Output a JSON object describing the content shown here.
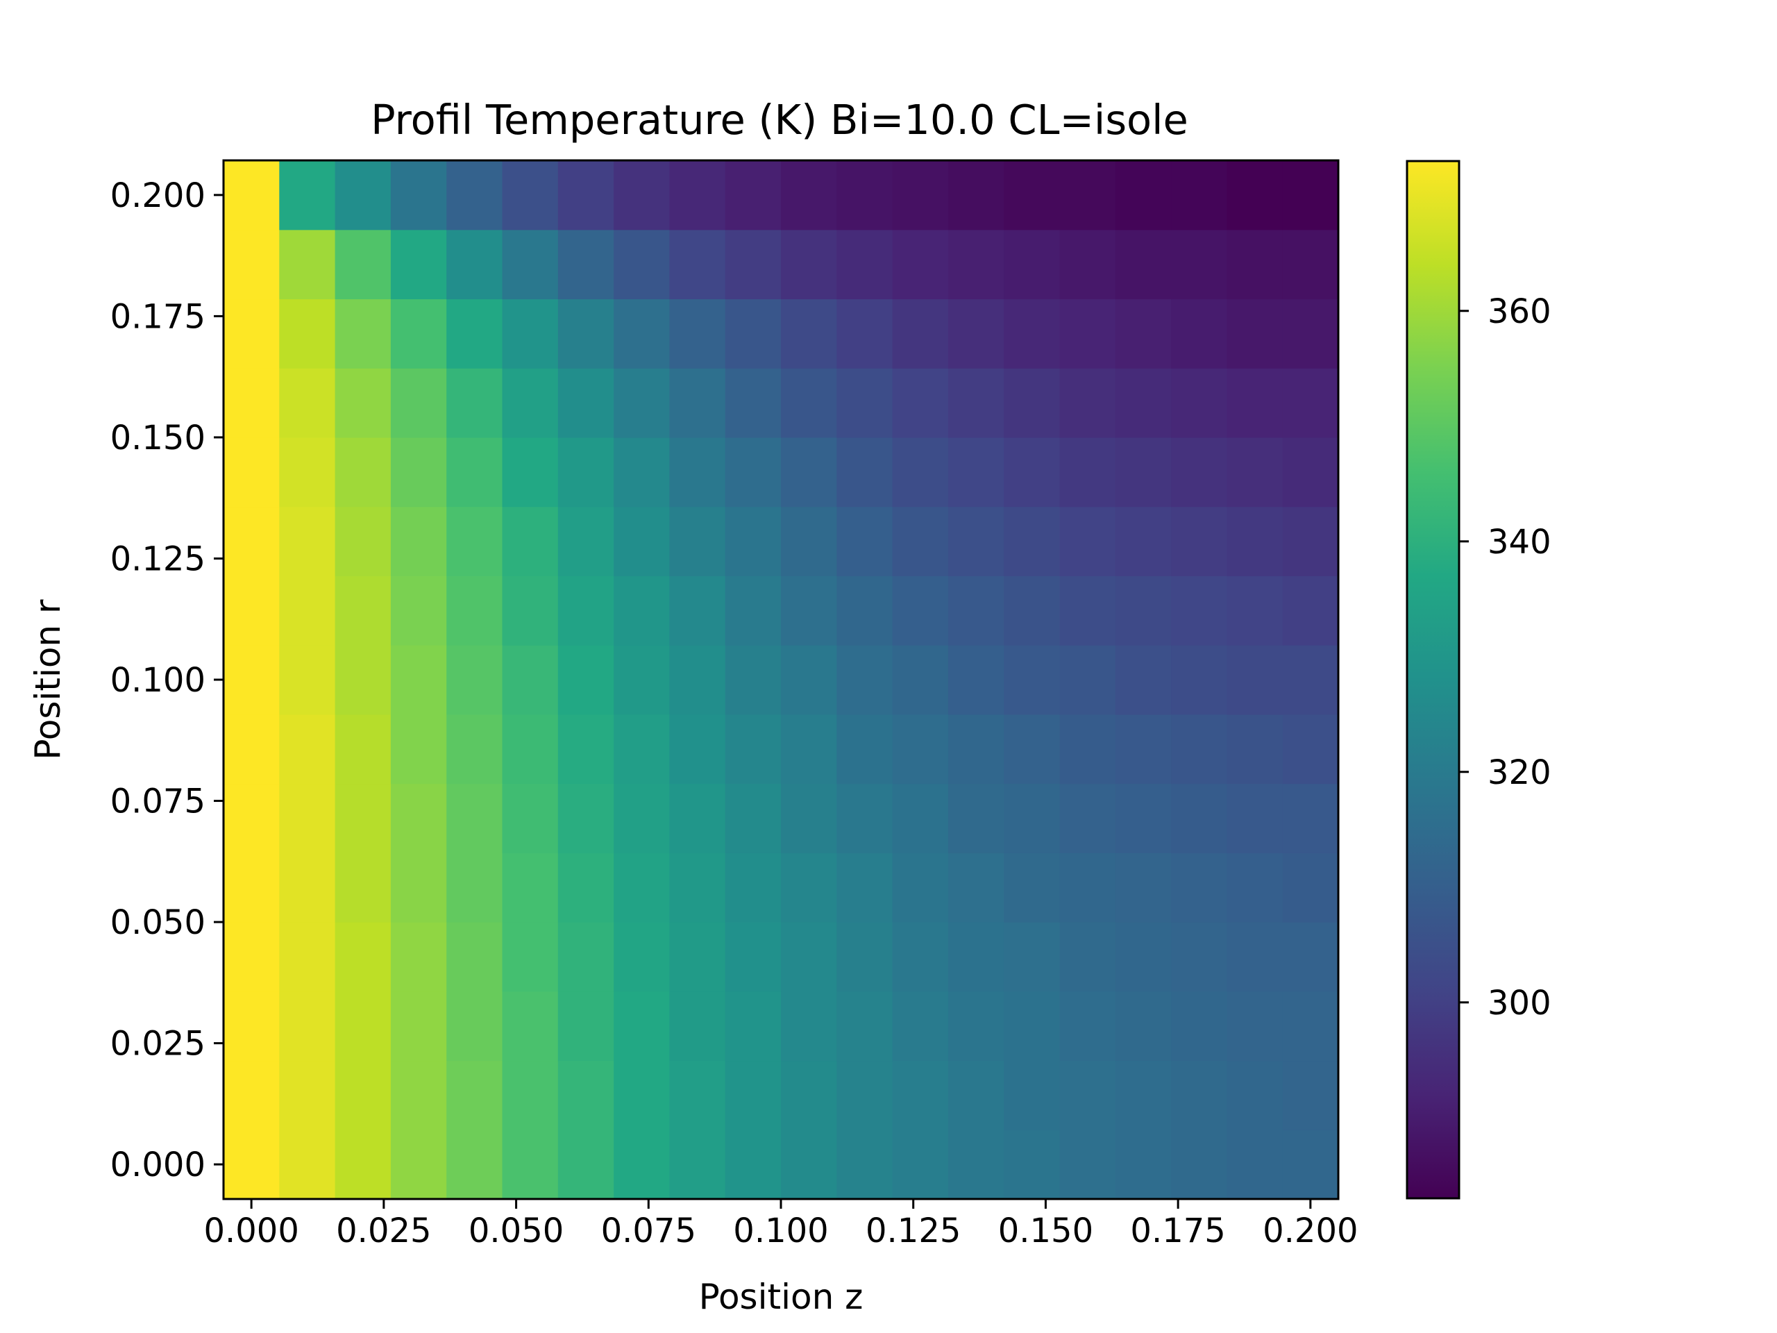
{
  "chart_data": {
    "type": "heatmap",
    "title": "Profil Temperature (K) Bi=10.0 CL=isole",
    "xlabel": "Position z",
    "ylabel": "Position r",
    "x_range": [
      0.0,
      0.2
    ],
    "y_range": [
      0.0,
      0.2
    ],
    "x_ticks": [
      0.0,
      0.025,
      0.05,
      0.075,
      0.1,
      0.125,
      0.15,
      0.175,
      0.2
    ],
    "y_ticks": [
      0.0,
      0.025,
      0.05,
      0.075,
      0.1,
      0.125,
      0.15,
      0.175,
      0.2
    ],
    "x_tick_labels": [
      "0.000",
      "0.025",
      "0.050",
      "0.075",
      "0.100",
      "0.125",
      "0.150",
      "0.175",
      "0.200"
    ],
    "y_tick_labels": [
      "0.000",
      "0.025",
      "0.050",
      "0.075",
      "0.100",
      "0.125",
      "0.150",
      "0.175",
      "0.200"
    ],
    "grid": false,
    "colormap": "viridis",
    "colorbar": {
      "range": [
        283,
        373
      ],
      "ticks": [
        300,
        320,
        340,
        360
      ],
      "tick_labels": [
        "300",
        "320",
        "340",
        "360"
      ]
    },
    "values": [
      [
        373,
        369,
        364,
        358,
        353,
        347,
        342,
        337,
        333,
        329,
        326,
        323,
        321,
        319,
        318,
        316,
        315,
        314,
        313,
        313
      ],
      [
        373,
        369,
        364,
        358,
        353,
        347,
        342,
        337,
        333,
        329,
        326,
        323,
        321,
        319,
        317,
        316,
        315,
        314,
        313,
        312
      ],
      [
        373,
        369,
        364,
        358,
        352,
        347,
        341,
        337,
        332,
        329,
        325,
        323,
        320,
        318,
        317,
        315,
        314,
        313,
        312,
        312
      ],
      [
        373,
        369,
        364,
        358,
        352,
        346,
        341,
        336,
        332,
        328,
        325,
        322,
        319,
        317,
        316,
        314,
        313,
        312,
        311,
        311
      ],
      [
        373,
        369,
        363,
        357,
        351,
        346,
        340,
        335,
        331,
        327,
        324,
        321,
        318,
        316,
        314,
        313,
        312,
        311,
        310,
        309
      ],
      [
        373,
        369,
        363,
        357,
        351,
        345,
        339,
        334,
        330,
        326,
        322,
        319,
        317,
        314,
        313,
        311,
        310,
        309,
        308,
        308
      ],
      [
        373,
        369,
        363,
        356,
        350,
        344,
        338,
        333,
        328,
        324,
        321,
        317,
        315,
        313,
        311,
        309,
        308,
        307,
        306,
        305
      ],
      [
        373,
        368,
        362,
        356,
        349,
        343,
        337,
        331,
        327,
        322,
        319,
        315,
        313,
        310,
        308,
        307,
        305,
        304,
        303,
        303
      ],
      [
        373,
        368,
        362,
        355,
        348,
        341,
        335,
        330,
        325,
        320,
        316,
        313,
        310,
        308,
        306,
        304,
        303,
        302,
        301,
        300
      ],
      [
        373,
        368,
        361,
        354,
        347,
        340,
        333,
        327,
        322,
        318,
        314,
        310,
        307,
        305,
        303,
        301,
        300,
        299,
        298,
        297
      ],
      [
        373,
        367,
        360,
        352,
        345,
        337,
        331,
        325,
        319,
        315,
        311,
        307,
        304,
        302,
        300,
        298,
        297,
        296,
        295,
        294
      ],
      [
        373,
        366,
        358,
        350,
        342,
        334,
        327,
        321,
        316,
        311,
        307,
        304,
        301,
        299,
        297,
        295,
        294,
        293,
        292,
        292
      ],
      [
        373,
        364,
        355,
        346,
        337,
        329,
        322,
        316,
        311,
        307,
        303,
        300,
        297,
        295,
        293,
        292,
        291,
        290,
        289,
        289
      ],
      [
        373,
        360,
        348,
        337,
        327,
        319,
        312,
        307,
        302,
        299,
        296,
        294,
        292,
        291,
        290,
        289,
        288,
        288,
        287,
        287
      ],
      [
        373,
        337,
        327,
        318,
        311,
        305,
        300,
        296,
        293,
        291,
        289,
        288,
        287,
        286,
        285,
        285,
        284,
        284,
        283,
        283
      ]
    ]
  }
}
